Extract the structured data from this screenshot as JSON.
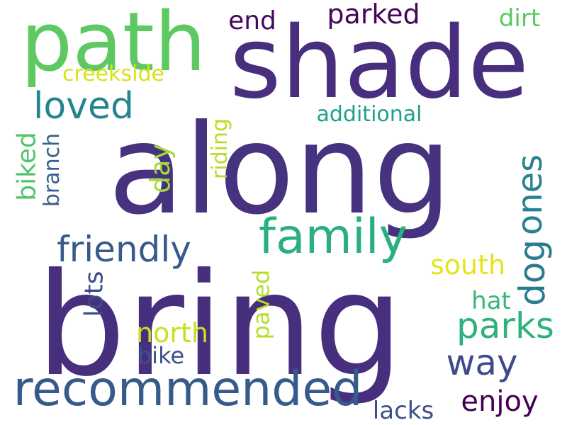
{
  "words": [
    {
      "text": "bring",
      "color": "#472f7d",
      "vertical": false
    },
    {
      "text": "along",
      "color": "#46327e",
      "vertical": false
    },
    {
      "text": "shade",
      "color": "#472f7d",
      "vertical": false
    },
    {
      "text": "path",
      "color": "#5ec962",
      "vertical": false
    },
    {
      "text": "family",
      "color": "#2ab07f",
      "vertical": false
    },
    {
      "text": "recommended",
      "color": "#375a8c",
      "vertical": false
    },
    {
      "text": "friendly",
      "color": "#38598c",
      "vertical": false
    },
    {
      "text": "loved",
      "color": "#25858e",
      "vertical": false
    },
    {
      "text": "parks",
      "color": "#2db27d",
      "vertical": false
    },
    {
      "text": "way",
      "color": "#3e4a89",
      "vertical": false
    },
    {
      "text": "dog",
      "color": "#297b8e",
      "vertical": true
    },
    {
      "text": "ones",
      "color": "#26828e",
      "vertical": true
    },
    {
      "text": "parked",
      "color": "#450559",
      "vertical": false
    },
    {
      "text": "end",
      "color": "#46085c",
      "vertical": false
    },
    {
      "text": "dirt",
      "color": "#5cc863",
      "vertical": false
    },
    {
      "text": "creekside",
      "color": "#d8e219",
      "vertical": false
    },
    {
      "text": "additional",
      "color": "#1fa187",
      "vertical": false
    },
    {
      "text": "day",
      "color": "#a5db36",
      "vertical": true
    },
    {
      "text": "riding",
      "color": "#b8de29",
      "vertical": true
    },
    {
      "text": "biked",
      "color": "#50c46a",
      "vertical": true
    },
    {
      "text": "branch",
      "color": "#365d8d",
      "vertical": true
    },
    {
      "text": "lots",
      "color": "#3d4d8a",
      "vertical": true
    },
    {
      "text": "north",
      "color": "#c8e020",
      "vertical": false
    },
    {
      "text": "paved",
      "color": "#b5de2b",
      "vertical": true
    },
    {
      "text": "bike",
      "color": "#3b528b",
      "vertical": false
    },
    {
      "text": "south",
      "color": "#e5e419",
      "vertical": false
    },
    {
      "text": "hat",
      "color": "#35b779",
      "vertical": false
    },
    {
      "text": "enjoy",
      "color": "#440154",
      "vertical": false
    },
    {
      "text": "lacks",
      "color": "#3c4f8a",
      "vertical": false
    }
  ]
}
